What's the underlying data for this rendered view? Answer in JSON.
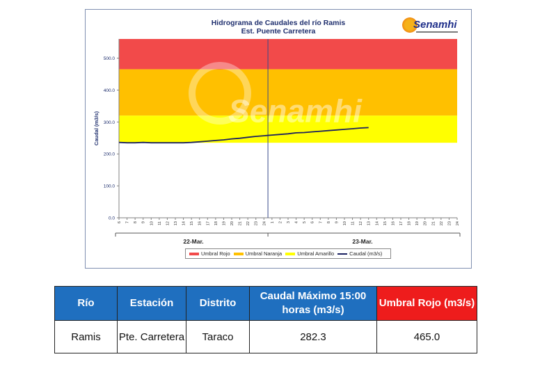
{
  "chart_data": {
    "type": "line",
    "title": "Hidrograma de Caudales del río Ramis",
    "subtitle": "Est. Puente Carretera",
    "ylabel": "Caudal (m3/s)",
    "ylim": [
      0,
      560
    ],
    "yticks": [
      "0.0",
      "100.0",
      "200.0",
      "300.0",
      "400.0",
      "500.0"
    ],
    "ytick_values": [
      0,
      100,
      200,
      300,
      400,
      500
    ],
    "hour_ticks": [
      "6",
      "7",
      "8",
      "9",
      "10",
      "11",
      "12",
      "13",
      "14",
      "15",
      "16",
      "17",
      "18",
      "19",
      "20",
      "21",
      "22",
      "23",
      "24",
      "1",
      "2",
      "3",
      "4",
      "5",
      "6",
      "7",
      "8",
      "9",
      "10",
      "11",
      "12",
      "13",
      "14",
      "15",
      "16",
      "17",
      "18",
      "19",
      "20",
      "21",
      "22",
      "23",
      "24"
    ],
    "day_labels": [
      "22-Mar.",
      "23-Mar."
    ],
    "bands": [
      {
        "name": "Umbral Rojo",
        "from": 465,
        "to": 560,
        "color": "#f24a4a"
      },
      {
        "name": "Umbral Naranja",
        "from": 320,
        "to": 465,
        "color": "#ffc000"
      },
      {
        "name": "Umbral Amarillo",
        "from": 235,
        "to": 320,
        "color": "#ffff00"
      }
    ],
    "series": [
      {
        "name": "Caudal (m3/s)",
        "color": "#1a2060",
        "values": [
          236,
          235,
          235,
          236,
          235,
          235,
          235,
          235,
          235,
          236,
          238,
          240,
          242,
          244,
          247,
          249,
          252,
          255,
          257,
          259,
          261,
          263,
          266,
          267,
          269,
          271,
          273,
          275,
          277,
          279,
          281,
          282.3
        ]
      }
    ],
    "watermark": "Senamhi"
  },
  "logo": {
    "text": "Senamhi"
  },
  "legend": {
    "items": [
      {
        "label": "Umbral Rojo",
        "color": "#f24a4a"
      },
      {
        "label": "Umbral Naranja",
        "color": "#ffc000"
      },
      {
        "label": "Umbral Amarillo",
        "color": "#ffff00"
      },
      {
        "label": "Caudal (m3/s)",
        "color": "#1a2060"
      }
    ]
  },
  "table": {
    "headers": [
      "Río",
      "Estación",
      "Distrito",
      "Caudal Máximo 15:00 horas (m3/s)",
      "Umbral Rojo (m3/s)"
    ],
    "rows": [
      [
        "Ramis",
        "Pte. Carretera",
        "Taraco",
        "282.3",
        "465.0"
      ]
    ]
  }
}
